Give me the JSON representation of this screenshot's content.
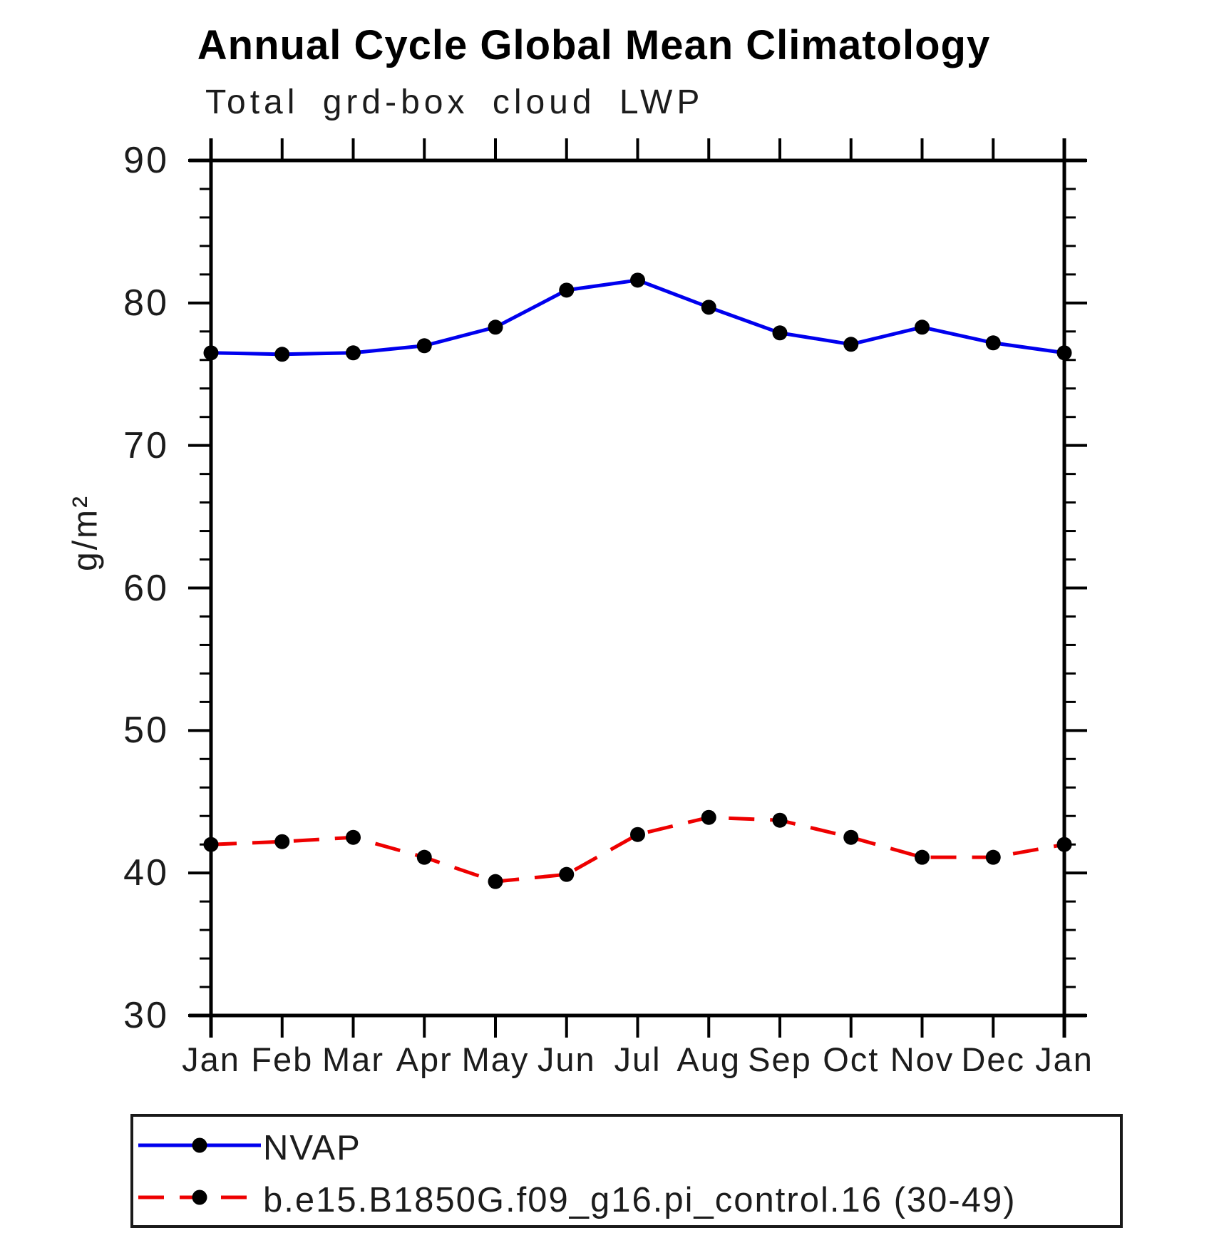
{
  "title": "Annual Cycle Global Mean Climatology",
  "chart_data": {
    "type": "line",
    "title": "Annual Cycle Global Mean Climatology",
    "subtitle": "Total grd-box cloud LWP",
    "xlabel": "",
    "ylabel": "g/m²",
    "ylim": [
      30,
      90
    ],
    "ytick_major": [
      30,
      40,
      50,
      60,
      70,
      80,
      90
    ],
    "ytick_minor_step": 2,
    "grid": false,
    "legend_position": "bottom",
    "categories": [
      "Jan",
      "Feb",
      "Mar",
      "Apr",
      "May",
      "Jun",
      "Jul",
      "Aug",
      "Sep",
      "Oct",
      "Nov",
      "Dec",
      "Jan"
    ],
    "series": [
      {
        "name": "NVAP",
        "color": "#0000ee",
        "line_style": "solid",
        "marker": "circle",
        "marker_color": "#000000",
        "values": [
          76.5,
          76.4,
          76.5,
          77.0,
          78.3,
          80.9,
          81.6,
          79.7,
          77.9,
          77.1,
          78.3,
          77.2,
          76.5
        ]
      },
      {
        "name": "b.e15.B1850G.f09_g16.pi_control.16 (30-49)",
        "color": "#ee0000",
        "line_style": "dashed",
        "marker": "circle",
        "marker_color": "#000000",
        "values": [
          42.0,
          42.2,
          42.5,
          41.1,
          39.4,
          39.9,
          42.7,
          43.9,
          43.7,
          42.5,
          41.1,
          41.1,
          42.0
        ]
      }
    ]
  },
  "colors": {
    "axis": "#000000",
    "text": "#1c1c1c",
    "nvap_line": "#0000ee",
    "model_line": "#ee0000",
    "marker": "#000000",
    "background": "#ffffff"
  }
}
